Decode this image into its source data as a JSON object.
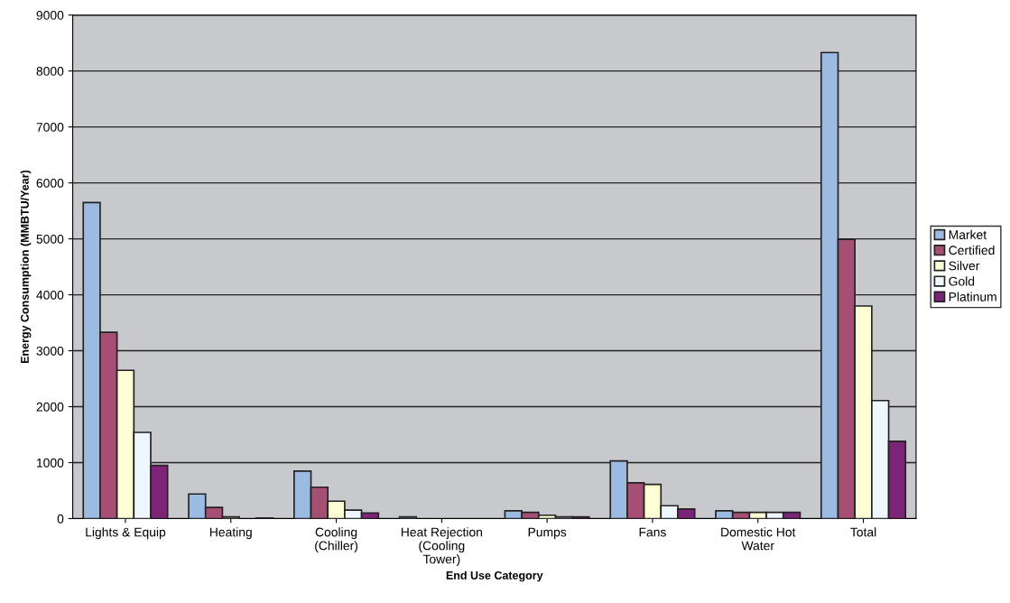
{
  "chart_data": {
    "type": "bar",
    "xlabel": "End Use Category",
    "ylabel": "Energy Consumption (MMBTU/Year)",
    "categories": [
      "Lights & Equip",
      "Heating",
      "Cooling\n(Chiller)",
      "Heat Rejection\n(Cooling\nTower)",
      "Pumps",
      "Fans",
      "Domestic Hot\nWater",
      "Total"
    ],
    "series": [
      {
        "name": "Market",
        "color": "#9bbbe3",
        "values": [
          5650,
          440,
          850,
          30,
          140,
          1030,
          140,
          8330
        ]
      },
      {
        "name": "Certified",
        "color": "#a44f73",
        "values": [
          3330,
          200,
          560,
          null,
          110,
          640,
          110,
          4990
        ]
      },
      {
        "name": "Silver",
        "color": "#fffdd5",
        "values": [
          2650,
          30,
          310,
          null,
          60,
          610,
          110,
          3800
        ]
      },
      {
        "name": "Gold",
        "color": "#eef6fe",
        "values": [
          1540,
          null,
          150,
          null,
          30,
          230,
          110,
          2110
        ]
      },
      {
        "name": "Platinum",
        "color": "#7c2477",
        "values": [
          950,
          10,
          100,
          null,
          30,
          170,
          110,
          1380
        ]
      }
    ],
    "ylim": [
      0,
      9000
    ],
    "yticks": [
      0,
      1000,
      2000,
      3000,
      4000,
      5000,
      6000,
      7000,
      8000,
      9000
    ],
    "grid": "y",
    "legend": "right"
  }
}
